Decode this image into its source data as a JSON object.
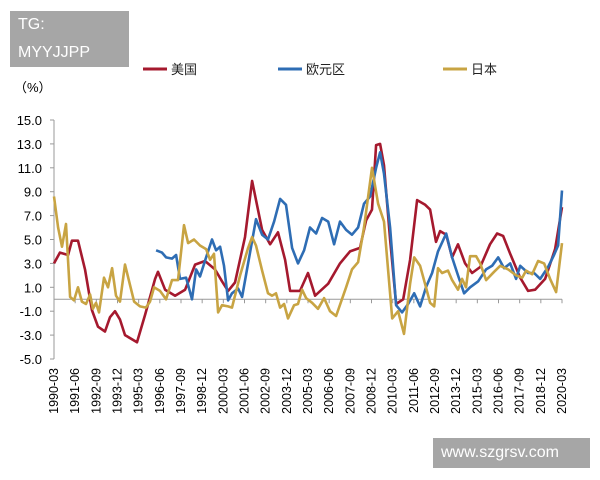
{
  "watermark_top": "TG: MYYJJPP",
  "watermark_bottom": "www.szgrsv.com",
  "chart_data": {
    "type": "line",
    "title": "",
    "ylabel": "（%）",
    "xlabel": "",
    "ylim": [
      -5,
      15
    ],
    "xlim": [
      1990.0,
      2020.0
    ],
    "yticks": [
      "15.0",
      "13.0",
      "11.0",
      "9.0",
      "7.0",
      "5.0",
      "3.0",
      "1.0",
      "-1.0",
      "-3.0",
      "-5.0"
    ],
    "ytick_values": [
      15,
      13,
      11,
      9,
      7,
      5,
      3,
      1,
      -1,
      -3,
      -5
    ],
    "xtick_labels": [
      "1990-03",
      "1991-06",
      "1992-09",
      "1993-12",
      "1995-03",
      "1996-06",
      "1997-09",
      "1998-12",
      "2000-03",
      "2001-06",
      "2002-09",
      "2003-12",
      "2005-03",
      "2006-06",
      "2007-09",
      "2008-12",
      "2010-03",
      "2011-06",
      "2012-09",
      "2013-12",
      "2015-03",
      "2016-06",
      "2017-09",
      "2018-12",
      "2020-03"
    ],
    "grid": false,
    "legend_position": "top",
    "series": [
      {
        "name": "美国",
        "color": "#a5192e",
        "points": [
          [
            1990.0,
            3.0
          ],
          [
            1990.35,
            3.9
          ],
          [
            1990.83,
            3.7
          ],
          [
            1991.06,
            4.9
          ],
          [
            1991.42,
            4.9
          ],
          [
            1991.83,
            2.5
          ],
          [
            1992.24,
            -0.9
          ],
          [
            1992.6,
            -2.3
          ],
          [
            1993.01,
            -2.7
          ],
          [
            1993.31,
            -1.5
          ],
          [
            1993.6,
            -1.0
          ],
          [
            1993.9,
            -1.7
          ],
          [
            1994.19,
            -3.0
          ],
          [
            1994.9,
            -3.6
          ],
          [
            1995.38,
            -1.3
          ],
          [
            1995.97,
            1.7
          ],
          [
            1996.14,
            2.3
          ],
          [
            1996.56,
            0.8
          ],
          [
            1997.15,
            0.3
          ],
          [
            1997.74,
            0.8
          ],
          [
            1998.33,
            2.9
          ],
          [
            1998.92,
            3.2
          ],
          [
            1999.51,
            2.5
          ],
          [
            1999.92,
            1.5
          ],
          [
            2000.28,
            0.7
          ],
          [
            2000.69,
            1.4
          ],
          [
            2001.28,
            5.2
          ],
          [
            2001.7,
            9.9
          ],
          [
            2002.29,
            5.8
          ],
          [
            2002.76,
            4.6
          ],
          [
            2003.23,
            5.6
          ],
          [
            2003.65,
            3.3
          ],
          [
            2003.94,
            0.7
          ],
          [
            2004.53,
            0.7
          ],
          [
            2005.0,
            2.2
          ],
          [
            2005.42,
            0.3
          ],
          [
            2006.19,
            1.3
          ],
          [
            2006.89,
            3.0
          ],
          [
            2007.48,
            4.0
          ],
          [
            2008.07,
            4.3
          ],
          [
            2008.43,
            6.6
          ],
          [
            2008.78,
            7.5
          ],
          [
            2009.02,
            12.9
          ],
          [
            2009.26,
            13.0
          ],
          [
            2009.49,
            11.2
          ],
          [
            2009.85,
            5.0
          ],
          [
            2010.2,
            -0.4
          ],
          [
            2010.62,
            0.0
          ],
          [
            2011.03,
            3.3
          ],
          [
            2011.44,
            8.3
          ],
          [
            2011.92,
            7.9
          ],
          [
            2012.21,
            7.5
          ],
          [
            2012.56,
            4.8
          ],
          [
            2012.8,
            5.7
          ],
          [
            2013.16,
            5.4
          ],
          [
            2013.51,
            3.5
          ],
          [
            2013.86,
            4.6
          ],
          [
            2014.28,
            3.0
          ],
          [
            2014.69,
            2.2
          ],
          [
            2015.17,
            2.7
          ],
          [
            2015.75,
            4.6
          ],
          [
            2016.17,
            5.5
          ],
          [
            2016.52,
            5.3
          ],
          [
            2016.94,
            3.8
          ],
          [
            2017.53,
            1.8
          ],
          [
            2018.0,
            0.7
          ],
          [
            2018.41,
            0.8
          ],
          [
            2019.0,
            1.7
          ],
          [
            2019.59,
            4.2
          ],
          [
            2020.0,
            7.7
          ]
        ]
      },
      {
        "name": "欧元区",
        "color": "#2e6db4",
        "points": [
          [
            1996.03,
            4.1
          ],
          [
            1996.38,
            3.9
          ],
          [
            1996.62,
            3.5
          ],
          [
            1996.97,
            3.4
          ],
          [
            1997.21,
            3.7
          ],
          [
            1997.44,
            1.7
          ],
          [
            1997.8,
            1.8
          ],
          [
            1998.15,
            0.0
          ],
          [
            1998.39,
            2.5
          ],
          [
            1998.62,
            1.9
          ],
          [
            1998.98,
            3.5
          ],
          [
            1999.33,
            5.0
          ],
          [
            1999.57,
            4.1
          ],
          [
            1999.81,
            4.4
          ],
          [
            2000.04,
            2.8
          ],
          [
            2000.28,
            -0.1
          ],
          [
            2000.51,
            0.5
          ],
          [
            2000.87,
            0.9
          ],
          [
            2001.11,
            0.2
          ],
          [
            2001.46,
            3.0
          ],
          [
            2001.93,
            6.7
          ],
          [
            2002.29,
            5.4
          ],
          [
            2002.64,
            5.0
          ],
          [
            2003.0,
            6.5
          ],
          [
            2003.35,
            8.4
          ],
          [
            2003.7,
            7.9
          ],
          [
            2004.06,
            4.3
          ],
          [
            2004.41,
            3.0
          ],
          [
            2004.77,
            4.1
          ],
          [
            2005.12,
            6.0
          ],
          [
            2005.48,
            5.5
          ],
          [
            2005.83,
            6.8
          ],
          [
            2006.19,
            6.5
          ],
          [
            2006.54,
            4.6
          ],
          [
            2006.89,
            6.5
          ],
          [
            2007.25,
            5.8
          ],
          [
            2007.6,
            5.4
          ],
          [
            2007.96,
            6.0
          ],
          [
            2008.31,
            8.0
          ],
          [
            2008.67,
            8.6
          ],
          [
            2009.02,
            11.0
          ],
          [
            2009.26,
            12.3
          ],
          [
            2009.49,
            10.5
          ],
          [
            2009.85,
            6.0
          ],
          [
            2010.2,
            -0.5
          ],
          [
            2010.56,
            -1.1
          ],
          [
            2010.91,
            -0.4
          ],
          [
            2011.27,
            0.5
          ],
          [
            2011.62,
            -0.6
          ],
          [
            2011.97,
            1.0
          ],
          [
            2012.33,
            2.2
          ],
          [
            2012.68,
            4.0
          ],
          [
            2013.16,
            5.5
          ],
          [
            2013.51,
            3.5
          ],
          [
            2013.86,
            2.0
          ],
          [
            2014.22,
            0.5
          ],
          [
            2014.57,
            1.0
          ],
          [
            2015.05,
            1.5
          ],
          [
            2015.52,
            2.5
          ],
          [
            2015.87,
            2.8
          ],
          [
            2016.23,
            3.5
          ],
          [
            2016.58,
            2.6
          ],
          [
            2016.94,
            3.0
          ],
          [
            2017.29,
            1.7
          ],
          [
            2017.53,
            2.8
          ],
          [
            2018.0,
            2.2
          ],
          [
            2018.35,
            2.2
          ],
          [
            2018.71,
            1.7
          ],
          [
            2019.18,
            2.7
          ],
          [
            2019.53,
            3.7
          ],
          [
            2019.77,
            4.5
          ],
          [
            2020.0,
            9.1
          ]
        ]
      },
      {
        "name": "日本",
        "color": "#c8a443",
        "points": [
          [
            1990.0,
            8.6
          ],
          [
            1990.24,
            6.0
          ],
          [
            1990.47,
            4.4
          ],
          [
            1990.71,
            6.3
          ],
          [
            1990.95,
            0.2
          ],
          [
            1991.18,
            -0.1
          ],
          [
            1991.42,
            1.0
          ],
          [
            1991.65,
            -0.2
          ],
          [
            1991.89,
            -0.4
          ],
          [
            1992.13,
            0.4
          ],
          [
            1992.3,
            -0.8
          ],
          [
            1992.48,
            -0.3
          ],
          [
            1992.66,
            -1.1
          ],
          [
            1992.95,
            1.8
          ],
          [
            1993.19,
            1.0
          ],
          [
            1993.43,
            2.6
          ],
          [
            1993.66,
            0.3
          ],
          [
            1993.9,
            -0.2
          ],
          [
            1994.19,
            2.9
          ],
          [
            1994.49,
            1.2
          ],
          [
            1994.73,
            -0.2
          ],
          [
            1995.08,
            -0.6
          ],
          [
            1995.43,
            -0.7
          ],
          [
            1995.67,
            -0.2
          ],
          [
            1995.91,
            1.0
          ],
          [
            1996.26,
            0.7
          ],
          [
            1996.62,
            0.0
          ],
          [
            1996.97,
            1.6
          ],
          [
            1997.32,
            1.6
          ],
          [
            1997.68,
            6.2
          ],
          [
            1997.92,
            4.7
          ],
          [
            1998.27,
            5.0
          ],
          [
            1998.62,
            4.5
          ],
          [
            1998.98,
            4.2
          ],
          [
            1999.22,
            3.3
          ],
          [
            1999.45,
            3.8
          ],
          [
            1999.69,
            -1.1
          ],
          [
            1999.92,
            -0.5
          ],
          [
            2000.28,
            -0.6
          ],
          [
            2000.51,
            -0.7
          ],
          [
            2000.99,
            2.0
          ],
          [
            2001.46,
            4.3
          ],
          [
            2001.7,
            5.2
          ],
          [
            2001.93,
            4.5
          ],
          [
            2002.29,
            2.4
          ],
          [
            2002.64,
            0.5
          ],
          [
            2002.88,
            0.3
          ],
          [
            2003.11,
            0.5
          ],
          [
            2003.35,
            -0.7
          ],
          [
            2003.59,
            -0.4
          ],
          [
            2003.82,
            -1.6
          ],
          [
            2004.18,
            -0.5
          ],
          [
            2004.41,
            -0.4
          ],
          [
            2004.65,
            0.8
          ],
          [
            2004.89,
            0.1
          ],
          [
            2005.24,
            -0.3
          ],
          [
            2005.59,
            -0.8
          ],
          [
            2005.95,
            0.1
          ],
          [
            2006.3,
            -1.0
          ],
          [
            2006.66,
            -1.4
          ],
          [
            2007.25,
            1.0
          ],
          [
            2007.6,
            2.5
          ],
          [
            2007.96,
            3.1
          ],
          [
            2008.31,
            6.0
          ],
          [
            2008.78,
            11.0
          ],
          [
            2009.14,
            8.0
          ],
          [
            2009.49,
            6.5
          ],
          [
            2009.97,
            -1.6
          ],
          [
            2010.32,
            -1.0
          ],
          [
            2010.67,
            -2.9
          ],
          [
            2011.03,
            1.3
          ],
          [
            2011.27,
            3.5
          ],
          [
            2011.62,
            2.8
          ],
          [
            2011.97,
            1.0
          ],
          [
            2012.21,
            -0.3
          ],
          [
            2012.45,
            -0.6
          ],
          [
            2012.68,
            2.6
          ],
          [
            2012.92,
            2.2
          ],
          [
            2013.27,
            2.4
          ],
          [
            2013.51,
            1.6
          ],
          [
            2013.86,
            0.8
          ],
          [
            2014.1,
            1.7
          ],
          [
            2014.33,
            1.0
          ],
          [
            2014.57,
            3.6
          ],
          [
            2014.93,
            3.6
          ],
          [
            2015.17,
            3.0
          ],
          [
            2015.52,
            1.6
          ],
          [
            2015.99,
            2.3
          ],
          [
            2016.35,
            2.8
          ],
          [
            2016.82,
            2.5
          ],
          [
            2017.29,
            2.0
          ],
          [
            2017.65,
            1.8
          ],
          [
            2017.88,
            2.4
          ],
          [
            2018.24,
            2.1
          ],
          [
            2018.59,
            3.2
          ],
          [
            2018.94,
            3.0
          ],
          [
            2019.3,
            1.7
          ],
          [
            2019.65,
            0.6
          ],
          [
            2020.0,
            4.7
          ]
        ]
      }
    ]
  }
}
